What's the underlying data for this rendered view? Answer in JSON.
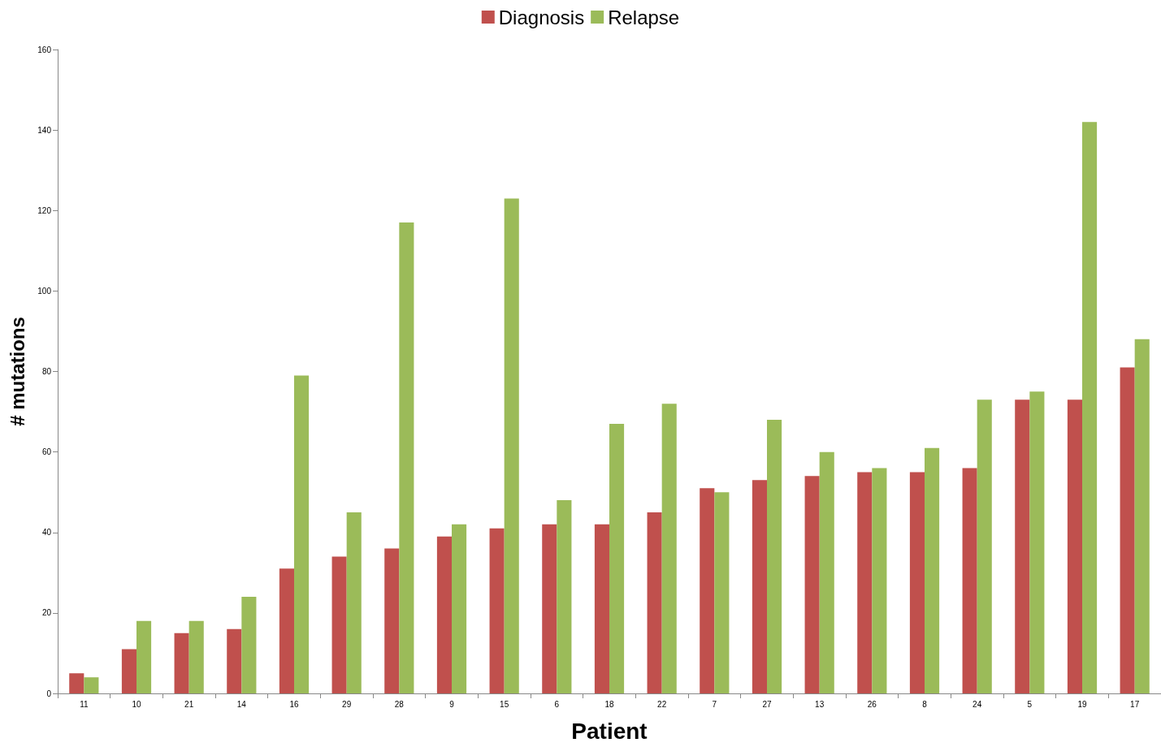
{
  "chart_data": {
    "type": "bar",
    "xlabel": "Patient",
    "ylabel": "# mutations",
    "categories": [
      "11",
      "10",
      "21",
      "14",
      "16",
      "29",
      "28",
      "9",
      "15",
      "6",
      "18",
      "22",
      "7",
      "27",
      "13",
      "26",
      "8",
      "24",
      "5",
      "19",
      "17"
    ],
    "series": [
      {
        "name": "Diagnosis",
        "color": "#c0504d",
        "values": [
          5,
          11,
          15,
          16,
          31,
          34,
          36,
          39,
          41,
          42,
          42,
          45,
          51,
          53,
          54,
          55,
          55,
          56,
          73,
          73,
          81
        ]
      },
      {
        "name": "Relapse",
        "color": "#9bbb59",
        "values": [
          4,
          18,
          18,
          24,
          79,
          45,
          117,
          42,
          123,
          48,
          67,
          72,
          50,
          68,
          60,
          56,
          61,
          73,
          75,
          142,
          88
        ]
      }
    ],
    "ylim": [
      0,
      160
    ],
    "yticks": [
      0,
      20,
      40,
      60,
      80,
      100,
      120,
      140,
      160
    ],
    "grid": false,
    "legend": "top"
  }
}
